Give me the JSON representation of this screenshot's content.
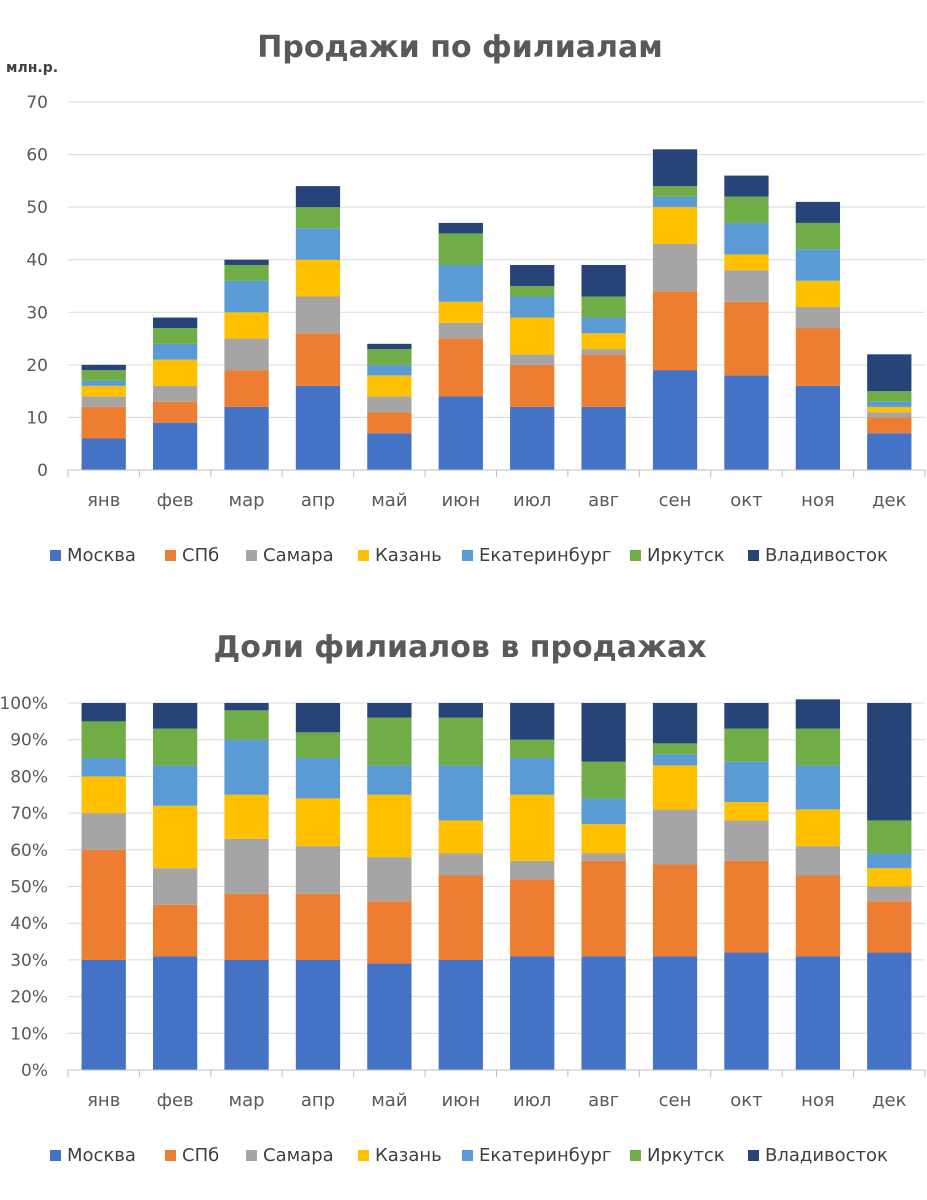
{
  "series_colors": {
    "Москва": "#4472C4",
    "СПб": "#ED7D31",
    "Самара": "#A5A5A5",
    "Казань": "#FFC000",
    "Екатеринбург": "#5B9BD5",
    "Иркутск": "#70AD47",
    "Владивосток": "#264478"
  },
  "chart_data": [
    {
      "type": "bar",
      "stacked": true,
      "title": "Продажи по филиалам",
      "ylabel": "млн.р.",
      "ylim": [
        0,
        70
      ],
      "yticks": [
        "0",
        "10",
        "20",
        "30",
        "40",
        "50",
        "60",
        "70"
      ],
      "categories": [
        "янв",
        "фев",
        "мар",
        "апр",
        "май",
        "июн",
        "июл",
        "авг",
        "сен",
        "окт",
        "ноя",
        "дек"
      ],
      "legend": [
        "Москва",
        "СПб",
        "Самара",
        "Казань",
        "Екатеринбург",
        "Иркутск",
        "Владивосток"
      ],
      "legend_position": "bottom",
      "series": [
        {
          "name": "Москва",
          "values": [
            6,
            9,
            12,
            16,
            7,
            14,
            12,
            12,
            19,
            18,
            16,
            7
          ]
        },
        {
          "name": "СПб",
          "values": [
            6,
            4,
            7,
            10,
            4,
            11,
            8,
            10,
            15,
            14,
            11,
            3
          ]
        },
        {
          "name": "Самара",
          "values": [
            2,
            3,
            6,
            7,
            3,
            3,
            2,
            1,
            9,
            6,
            4,
            1
          ]
        },
        {
          "name": "Казань",
          "values": [
            2,
            5,
            5,
            7,
            4,
            4,
            7,
            3,
            7,
            3,
            5,
            1
          ]
        },
        {
          "name": "Екатеринбург",
          "values": [
            1,
            3,
            6,
            6,
            2,
            7,
            4,
            3,
            2,
            6,
            6,
            1
          ]
        },
        {
          "name": "Иркутск",
          "values": [
            2,
            3,
            3,
            4,
            3,
            6,
            2,
            4,
            2,
            5,
            5,
            2
          ]
        },
        {
          "name": "Владивосток",
          "values": [
            1,
            2,
            1,
            4,
            1,
            2,
            4,
            6,
            7,
            4,
            4,
            7
          ]
        }
      ]
    },
    {
      "type": "bar",
      "stacked": true,
      "percent": true,
      "title": "Доли филиалов в продажах",
      "ylim": [
        0,
        100
      ],
      "yticks": [
        "0%",
        "10%",
        "20%",
        "30%",
        "40%",
        "50%",
        "60%",
        "70%",
        "80%",
        "90%",
        "100%"
      ],
      "categories": [
        "янв",
        "фев",
        "мар",
        "апр",
        "май",
        "июн",
        "июл",
        "авг",
        "сен",
        "окт",
        "ноя",
        "дек"
      ],
      "legend": [
        "Москва",
        "СПб",
        "Самара",
        "Казань",
        "Екатеринбург",
        "Иркутск",
        "Владивосток"
      ],
      "legend_position": "bottom",
      "series": [
        {
          "name": "Москва",
          "values": [
            30,
            31,
            30,
            30,
            29,
            30,
            31,
            31,
            31,
            32,
            31,
            32
          ]
        },
        {
          "name": "СПб",
          "values": [
            30,
            14,
            18,
            18,
            17,
            23,
            21,
            26,
            25,
            25,
            22,
            14
          ]
        },
        {
          "name": "Самара",
          "values": [
            10,
            10,
            15,
            13,
            12,
            6,
            5,
            2,
            15,
            11,
            8,
            4
          ]
        },
        {
          "name": "Казань",
          "values": [
            10,
            17,
            12,
            13,
            17,
            9,
            18,
            8,
            12,
            5,
            10,
            5
          ]
        },
        {
          "name": "Екатеринбург",
          "values": [
            5,
            11,
            15,
            11,
            8,
            15,
            10,
            7,
            3,
            11,
            12,
            4
          ]
        },
        {
          "name": "Иркутск",
          "values": [
            10,
            10,
            8,
            7,
            13,
            13,
            5,
            10,
            3,
            9,
            10,
            9
          ]
        },
        {
          "name": "Владивосток",
          "values": [
            5,
            7,
            2,
            8,
            4,
            4,
            10,
            16,
            11,
            7,
            8,
            32
          ]
        }
      ]
    }
  ]
}
